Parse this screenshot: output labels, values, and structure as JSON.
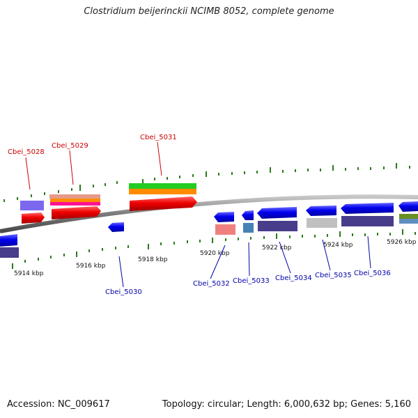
{
  "title": "Clostridium beijerinckii NCIMB 8052, complete genome",
  "footer": {
    "accession": "Accession: NC_009617",
    "topology": "Topology: circular; Length: 6,000,632 bp; Genes: 5,160"
  },
  "colors": {
    "backbone": "#7a7a7a",
    "tick": "#2a7a1a",
    "label_top": "#cc0000",
    "label_bottom": "#0000aa",
    "cds_forward": "#ee0000",
    "cds_reverse": "#0000ee"
  },
  "axis": {
    "tick_labels": [
      {
        "text": "5914 kbp"
      },
      {
        "text": "5916 kbp"
      },
      {
        "text": "5918 kbp"
      },
      {
        "text": "5920 kbp"
      },
      {
        "text": "5922 kbp"
      },
      {
        "text": "5924 kbp"
      },
      {
        "text": "5926 kbp"
      }
    ]
  },
  "genes": {
    "top": [
      {
        "label": "Cbei_5028"
      },
      {
        "label": "Cbei_5029"
      },
      {
        "label": "Cbei_5031"
      }
    ],
    "bottom": [
      {
        "label": "Cbei_5030"
      },
      {
        "label": "Cbei_5032"
      },
      {
        "label": "Cbei_5033"
      },
      {
        "label": "Cbei_5034"
      },
      {
        "label": "Cbei_5035"
      },
      {
        "label": "Cbei_5036"
      }
    ]
  }
}
